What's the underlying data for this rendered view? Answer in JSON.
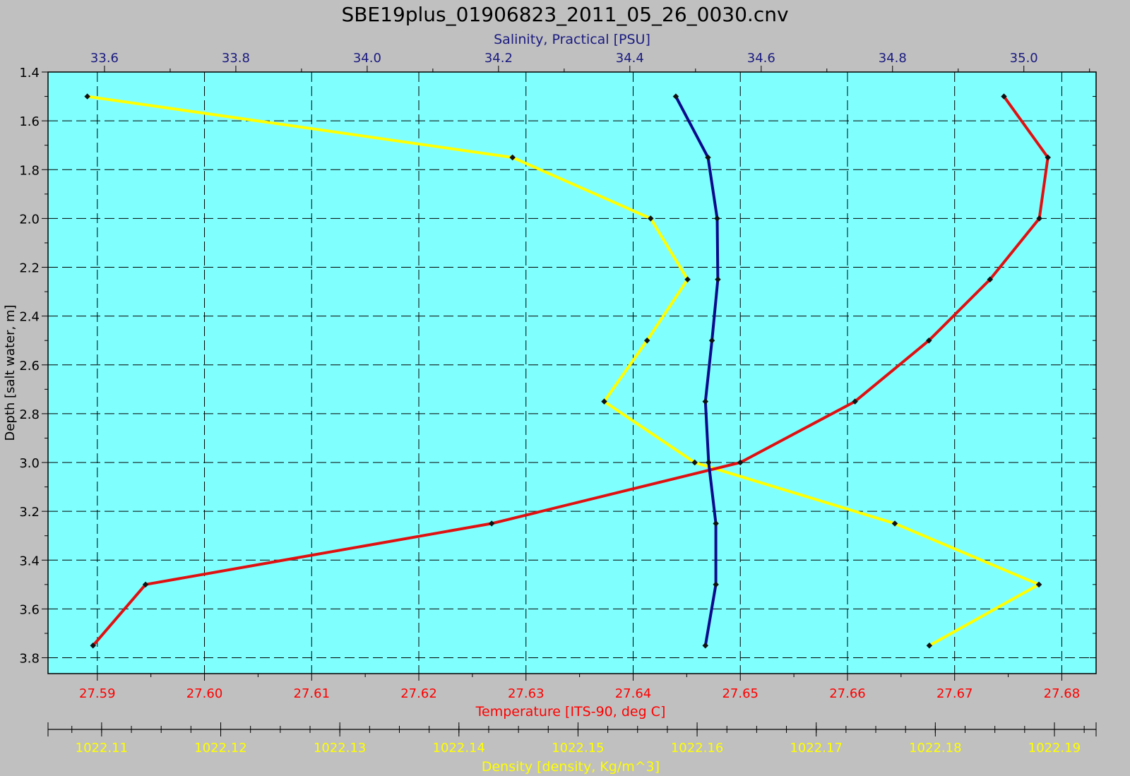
{
  "chart_data": {
    "type": "line",
    "title": "SBE19plus_01906823_2011_05_26_0030.cnv",
    "ylabel": "Depth [salt water, m]",
    "y_axis": {
      "ticks": [
        1.4,
        1.6,
        1.8,
        2.0,
        2.2,
        2.4,
        2.6,
        2.8,
        3.0,
        3.2,
        3.4,
        3.6,
        3.8
      ],
      "tick_labels": [
        "1.4",
        "1.6",
        "1.8",
        "2.0",
        "2.2",
        "2.4",
        "2.6",
        "2.8",
        "3.0",
        "3.2",
        "3.4",
        "3.6",
        "3.8"
      ],
      "range": [
        1.4,
        3.865
      ],
      "inverted": true
    },
    "grid": true,
    "background": "#80ffff",
    "series": [
      {
        "name": "Salinity, Practical [PSU]",
        "axis": "top",
        "color": "#0a0a8c",
        "axis_label_color": "#1a1a80",
        "tick_labels": [
          "33.6",
          "33.8",
          "34.0",
          "34.2",
          "34.4",
          "34.6",
          "34.8",
          "35.0"
        ],
        "range": [
          33.514,
          35.11
        ],
        "points": [
          {
            "x": 34.47,
            "y": 1.5
          },
          {
            "x": 34.519,
            "y": 1.75
          },
          {
            "x": 34.533,
            "y": 2.0
          },
          {
            "x": 34.534,
            "y": 2.25
          },
          {
            "x": 34.525,
            "y": 2.5
          },
          {
            "x": 34.515,
            "y": 2.75
          },
          {
            "x": 34.52,
            "y": 3.0
          },
          {
            "x": 34.531,
            "y": 3.25
          },
          {
            "x": 34.531,
            "y": 3.5
          },
          {
            "x": 34.515,
            "y": 3.75
          }
        ]
      },
      {
        "name": "Temperature [ITS-90, deg C]",
        "axis": "bottom",
        "color": "#e01010",
        "axis_label_color": "#ff0000",
        "tick_labels": [
          "27.59",
          "27.60",
          "27.61",
          "27.62",
          "27.63",
          "27.64",
          "27.65",
          "27.66",
          "27.67",
          "27.68"
        ],
        "range": [
          27.5854,
          27.6832
        ],
        "points": [
          {
            "x": 27.6746,
            "y": 1.5
          },
          {
            "x": 27.6787,
            "y": 1.75
          },
          {
            "x": 27.6779,
            "y": 2.0
          },
          {
            "x": 27.6733,
            "y": 2.25
          },
          {
            "x": 27.6676,
            "y": 2.5
          },
          {
            "x": 27.6607,
            "y": 2.75
          },
          {
            "x": 27.65,
            "y": 3.0
          },
          {
            "x": 27.6268,
            "y": 3.25
          },
          {
            "x": 27.5945,
            "y": 3.5
          },
          {
            "x": 27.5896,
            "y": 3.75
          }
        ]
      },
      {
        "name": "Density [density, Kg/m^3]",
        "axis": "bottom2",
        "color": "#ffff00",
        "axis_label_color": "#ffff00",
        "tick_labels": [
          "1022.11",
          "1022.12",
          "1022.13",
          "1022.14",
          "1022.15",
          "1022.16",
          "1022.17",
          "1022.18",
          "1022.19"
        ],
        "range": [
          1022.1055,
          1022.1935
        ],
        "points": [
          {
            "x": 1022.1088,
            "y": 1.5
          },
          {
            "x": 1022.1445,
            "y": 1.75
          },
          {
            "x": 1022.1561,
            "y": 2.0
          },
          {
            "x": 1022.1592,
            "y": 2.25
          },
          {
            "x": 1022.1558,
            "y": 2.5
          },
          {
            "x": 1022.1522,
            "y": 2.75
          },
          {
            "x": 1022.1598,
            "y": 3.0
          },
          {
            "x": 1022.1766,
            "y": 3.25
          },
          {
            "x": 1022.1887,
            "y": 3.5
          },
          {
            "x": 1022.1795,
            "y": 3.75
          }
        ]
      }
    ]
  }
}
